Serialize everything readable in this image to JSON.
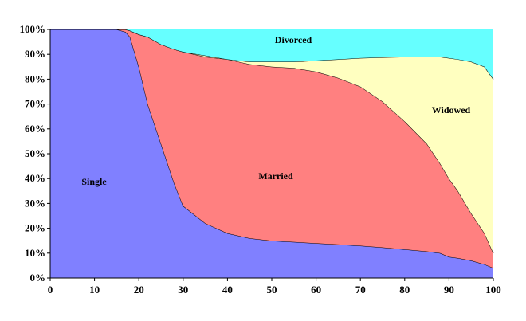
{
  "chart_data": {
    "type": "area",
    "stacked": "percent",
    "title": "",
    "xlabel": "",
    "ylabel": "",
    "xlim": [
      0,
      100
    ],
    "ylim": [
      0,
      100
    ],
    "x_ticks": [
      "0",
      "10",
      "20",
      "30",
      "40",
      "50",
      "60",
      "70",
      "80",
      "90",
      "100"
    ],
    "y_ticks": [
      "0%",
      "10%",
      "20%",
      "30%",
      "40%",
      "50%",
      "60%",
      "70%",
      "80%",
      "90%",
      "100%"
    ],
    "grid": false,
    "legend": "none (series labelled inside areas)",
    "x": [
      0,
      10,
      15,
      17,
      18,
      20,
      22,
      25,
      28,
      30,
      35,
      40,
      45,
      50,
      55,
      60,
      65,
      70,
      75,
      80,
      85,
      88,
      90,
      92,
      95,
      98,
      100
    ],
    "series": [
      {
        "name": "Single",
        "color": "#8080FF",
        "values": [
          100,
          100,
          100,
          99,
          97,
          85,
          70,
          54,
          38,
          29,
          22,
          18,
          16,
          15,
          14.5,
          14,
          13.5,
          13,
          12.3,
          11.5,
          10.7,
          10,
          8.5,
          8,
          7,
          5.5,
          4
        ]
      },
      {
        "name": "Married",
        "color": "#FF8080",
        "values": [
          0,
          0,
          0,
          1,
          2.5,
          13,
          27,
          40,
          54,
          62,
          67,
          70,
          70,
          70,
          70,
          69,
          67,
          64,
          58.7,
          51.5,
          43.3,
          36,
          31.5,
          27,
          19,
          12.5,
          6
        ]
      },
      {
        "name": "Widowed",
        "color": "#FFFFC0",
        "values": [
          0,
          0,
          0,
          0,
          0,
          0,
          0,
          0,
          0,
          0,
          0.5,
          0,
          1,
          2,
          2.5,
          4.5,
          7.5,
          11.5,
          17.8,
          26,
          35,
          43,
          48.5,
          53,
          61,
          67,
          70
        ]
      },
      {
        "name": "Divorced",
        "color": "#66FFFF",
        "values": [
          0,
          0,
          0,
          0,
          0.5,
          2,
          3,
          6,
          8,
          9,
          10.5,
          12,
          13,
          13,
          13,
          12.5,
          12,
          11.5,
          11.2,
          11,
          11,
          11,
          11.5,
          12,
          13,
          15,
          20
        ]
      }
    ]
  }
}
